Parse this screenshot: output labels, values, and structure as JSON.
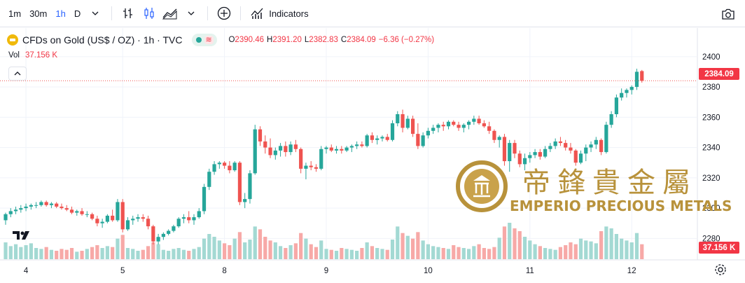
{
  "toolbar": {
    "intervals": [
      "1m",
      "30m",
      "1h",
      "D"
    ],
    "active_interval": "1h",
    "indicators_label": "Indicators"
  },
  "legend": {
    "symbol_title": "CFDs on Gold (US$ / OZ) · 1h · TVC",
    "ohlc": [
      {
        "key": "O",
        "value": "2390.46"
      },
      {
        "key": "H",
        "value": "2391.20"
      },
      {
        "key": "L",
        "value": "2382.83"
      },
      {
        "key": "C",
        "value": "2384.09"
      }
    ],
    "change": "−6.36 (−0.27%)",
    "vol_label": "Vol",
    "vol_value": "37.156 K"
  },
  "watermark": {
    "chinese": "帝鋒貴金屬",
    "english": "EMPERIO PRECIOUS METALS"
  },
  "colors": {
    "up": "#26a69a",
    "down": "#ef5350",
    "vol_up": "#a3d9d3",
    "vol_down": "#f7a9a7",
    "grid": "#f0f3fa",
    "gold": "#b8923b"
  },
  "chart_data": {
    "type": "candlestick",
    "y_axis": {
      "min": 2270,
      "max": 2405,
      "ticks": [
        2280,
        2300,
        2320,
        2340,
        2360,
        2380,
        2400
      ]
    },
    "x_ticks": [
      {
        "label": "4",
        "index": 4
      },
      {
        "label": "5",
        "index": 23
      },
      {
        "label": "8",
        "index": 43
      },
      {
        "label": "9",
        "index": 63
      },
      {
        "label": "10",
        "index": 83
      },
      {
        "label": "11",
        "index": 103
      },
      {
        "label": "12",
        "index": 123
      }
    ],
    "last_price": "2384.09",
    "last_volume": "37.156 K",
    "candles": [
      [
        2292,
        2297,
        2289,
        2296
      ],
      [
        2296,
        2300,
        2294,
        2298
      ],
      [
        2298,
        2301,
        2296,
        2299
      ],
      [
        2299,
        2302,
        2297,
        2300
      ],
      [
        2300,
        2303,
        2298,
        2301
      ],
      [
        2301,
        2303,
        2299,
        2302
      ],
      [
        2302,
        2304,
        2300,
        2302
      ],
      [
        2302,
        2305,
        2301,
        2304
      ],
      [
        2304,
        2305,
        2301,
        2302
      ],
      [
        2302,
        2304,
        2300,
        2303
      ],
      [
        2303,
        2304,
        2300,
        2301
      ],
      [
        2301,
        2303,
        2299,
        2300
      ],
      [
        2300,
        2302,
        2298,
        2299
      ],
      [
        2299,
        2301,
        2296,
        2297
      ],
      [
        2297,
        2299,
        2295,
        2298
      ],
      [
        2298,
        2300,
        2295,
        2296
      ],
      [
        2296,
        2298,
        2294,
        2296
      ],
      [
        2296,
        2297,
        2292,
        2293
      ],
      [
        2293,
        2295,
        2288,
        2290
      ],
      [
        2290,
        2293,
        2287,
        2291
      ],
      [
        2291,
        2296,
        2290,
        2295
      ],
      [
        2295,
        2299,
        2291,
        2292
      ],
      [
        2292,
        2306,
        2291,
        2304
      ],
      [
        2304,
        2306,
        2284,
        2286
      ],
      [
        2286,
        2294,
        2285,
        2292
      ],
      [
        2292,
        2295,
        2289,
        2293
      ],
      [
        2293,
        2296,
        2291,
        2294
      ],
      [
        2294,
        2296,
        2291,
        2293
      ],
      [
        2293,
        2295,
        2286,
        2288
      ],
      [
        2288,
        2289,
        2276,
        2278
      ],
      [
        2278,
        2283,
        2276,
        2281
      ],
      [
        2281,
        2284,
        2279,
        2283
      ],
      [
        2283,
        2286,
        2282,
        2285
      ],
      [
        2285,
        2289,
        2284,
        2288
      ],
      [
        2288,
        2294,
        2287,
        2293
      ],
      [
        2293,
        2296,
        2290,
        2294
      ],
      [
        2294,
        2298,
        2290,
        2292
      ],
      [
        2292,
        2296,
        2289,
        2294
      ],
      [
        2294,
        2300,
        2293,
        2298
      ],
      [
        2298,
        2316,
        2296,
        2314
      ],
      [
        2314,
        2326,
        2312,
        2324
      ],
      [
        2324,
        2331,
        2322,
        2329
      ],
      [
        2329,
        2331,
        2326,
        2330
      ],
      [
        2330,
        2331,
        2326,
        2328
      ],
      [
        2328,
        2331,
        2323,
        2325
      ],
      [
        2325,
        2331,
        2324,
        2330
      ],
      [
        2330,
        2331,
        2302,
        2304
      ],
      [
        2304,
        2310,
        2300,
        2306
      ],
      [
        2306,
        2325,
        2303,
        2323
      ],
      [
        2323,
        2355,
        2322,
        2352
      ],
      [
        2352,
        2354,
        2341,
        2344
      ],
      [
        2344,
        2348,
        2336,
        2340
      ],
      [
        2340,
        2346,
        2333,
        2335
      ],
      [
        2335,
        2340,
        2332,
        2338
      ],
      [
        2338,
        2343,
        2334,
        2341
      ],
      [
        2341,
        2344,
        2334,
        2337
      ],
      [
        2337,
        2344,
        2335,
        2342
      ],
      [
        2342,
        2345,
        2337,
        2339
      ],
      [
        2339,
        2340,
        2323,
        2326
      ],
      [
        2326,
        2330,
        2319,
        2328
      ],
      [
        2328,
        2331,
        2325,
        2327
      ],
      [
        2327,
        2329,
        2324,
        2326
      ],
      [
        2326,
        2341,
        2325,
        2339
      ],
      [
        2339,
        2341,
        2336,
        2340
      ],
      [
        2340,
        2342,
        2337,
        2338
      ],
      [
        2338,
        2341,
        2336,
        2339
      ],
      [
        2339,
        2341,
        2336,
        2338
      ],
      [
        2338,
        2341,
        2337,
        2340
      ],
      [
        2340,
        2342,
        2337,
        2341
      ],
      [
        2341,
        2344,
        2339,
        2342
      ],
      [
        2342,
        2344,
        2340,
        2341
      ],
      [
        2341,
        2349,
        2340,
        2348
      ],
      [
        2348,
        2350,
        2343,
        2345
      ],
      [
        2345,
        2348,
        2342,
        2346
      ],
      [
        2346,
        2348,
        2344,
        2347
      ],
      [
        2347,
        2349,
        2344,
        2345
      ],
      [
        2345,
        2358,
        2344,
        2356
      ],
      [
        2356,
        2364,
        2354,
        2362
      ],
      [
        2362,
        2365,
        2350,
        2353
      ],
      [
        2353,
        2361,
        2352,
        2359
      ],
      [
        2359,
        2361,
        2347,
        2349
      ],
      [
        2349,
        2356,
        2339,
        2341
      ],
      [
        2341,
        2350,
        2340,
        2348
      ],
      [
        2348,
        2353,
        2346,
        2351
      ],
      [
        2351,
        2355,
        2349,
        2353
      ],
      [
        2353,
        2356,
        2350,
        2355
      ],
      [
        2355,
        2357,
        2351,
        2354
      ],
      [
        2354,
        2358,
        2352,
        2357
      ],
      [
        2357,
        2358,
        2354,
        2355
      ],
      [
        2355,
        2357,
        2351,
        2353
      ],
      [
        2353,
        2356,
        2350,
        2355
      ],
      [
        2355,
        2358,
        2352,
        2357
      ],
      [
        2357,
        2361,
        2355,
        2359
      ],
      [
        2359,
        2361,
        2355,
        2356
      ],
      [
        2356,
        2358,
        2353,
        2354
      ],
      [
        2354,
        2357,
        2349,
        2351
      ],
      [
        2351,
        2352,
        2343,
        2345
      ],
      [
        2345,
        2348,
        2340,
        2347
      ],
      [
        2347,
        2349,
        2328,
        2331
      ],
      [
        2331,
        2345,
        2324,
        2343
      ],
      [
        2343,
        2345,
        2333,
        2336
      ],
      [
        2336,
        2338,
        2327,
        2329
      ],
      [
        2329,
        2336,
        2325,
        2333
      ],
      [
        2333,
        2337,
        2330,
        2335
      ],
      [
        2335,
        2339,
        2333,
        2337
      ],
      [
        2337,
        2339,
        2332,
        2334
      ],
      [
        2334,
        2341,
        2333,
        2339
      ],
      [
        2339,
        2343,
        2337,
        2341
      ],
      [
        2341,
        2346,
        2339,
        2344
      ],
      [
        2344,
        2347,
        2341,
        2343
      ],
      [
        2343,
        2345,
        2338,
        2340
      ],
      [
        2340,
        2343,
        2336,
        2338
      ],
      [
        2338,
        2339,
        2328,
        2330
      ],
      [
        2330,
        2338,
        2329,
        2336
      ],
      [
        2336,
        2342,
        2331,
        2340
      ],
      [
        2340,
        2344,
        2337,
        2342
      ],
      [
        2342,
        2347,
        2339,
        2345
      ],
      [
        2345,
        2346,
        2335,
        2337
      ],
      [
        2337,
        2357,
        2336,
        2355
      ],
      [
        2355,
        2364,
        2353,
        2362
      ],
      [
        2362,
        2375,
        2360,
        2373
      ],
      [
        2373,
        2379,
        2371,
        2376
      ],
      [
        2376,
        2379,
        2373,
        2378
      ],
      [
        2378,
        2381,
        2375,
        2380
      ],
      [
        2380,
        2392,
        2378,
        2390
      ],
      [
        2390.46,
        2391.2,
        2382.83,
        2384.09
      ]
    ],
    "volumes": [
      18,
      14,
      16,
      13,
      15,
      17,
      12,
      11,
      13,
      10,
      9,
      11,
      10,
      12,
      8,
      9,
      11,
      13,
      15,
      12,
      14,
      13,
      22,
      26,
      12,
      11,
      9,
      10,
      14,
      18,
      16,
      10,
      9,
      11,
      12,
      10,
      9,
      11,
      13,
      22,
      27,
      24,
      20,
      17,
      15,
      22,
      29,
      18,
      21,
      35,
      32,
      24,
      20,
      18,
      14,
      12,
      15,
      17,
      28,
      22,
      16,
      13,
      20,
      11,
      10,
      9,
      12,
      11,
      10,
      9,
      12,
      18,
      14,
      12,
      11,
      10,
      21,
      35,
      28,
      25,
      22,
      29,
      20,
      16,
      14,
      13,
      12,
      11,
      15,
      13,
      12,
      11,
      14,
      16,
      12,
      11,
      13,
      23,
      35,
      39,
      33,
      30,
      24,
      20,
      16,
      14,
      12,
      11,
      10,
      13,
      15,
      18,
      16,
      22,
      20,
      19,
      17,
      30,
      35,
      33,
      27,
      22,
      20,
      18,
      28,
      16
    ]
  }
}
